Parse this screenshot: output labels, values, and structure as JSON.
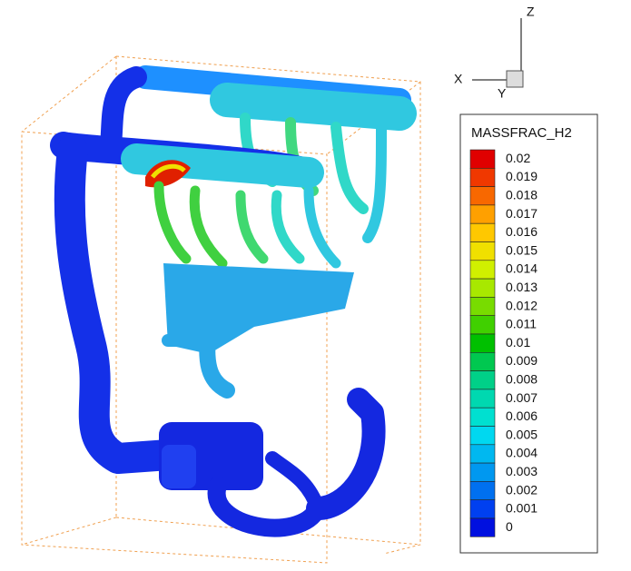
{
  "axes": {
    "z": "Z",
    "x": "X",
    "y": "Y"
  },
  "legend": {
    "title": "MASSFRAC_H2",
    "levels": [
      0.02,
      0.019,
      0.018,
      0.017,
      0.016,
      0.015,
      0.014,
      0.013,
      0.012,
      0.011,
      0.01,
      0.009,
      0.008,
      0.007,
      0.006,
      0.005,
      0.004,
      0.003,
      0.002,
      0.001,
      0
    ],
    "colors": [
      "#e00000",
      "#f03800",
      "#f86800",
      "#ffa000",
      "#ffc800",
      "#f0e000",
      "#d0f000",
      "#a8e800",
      "#78dc00",
      "#40d000",
      "#00c000",
      "#00c850",
      "#00d088",
      "#00d8b0",
      "#00e0d0",
      "#00d8f0",
      "#00b8f0",
      "#0098f0",
      "#0070f0",
      "#0040f0",
      "#0010e0"
    ]
  }
}
